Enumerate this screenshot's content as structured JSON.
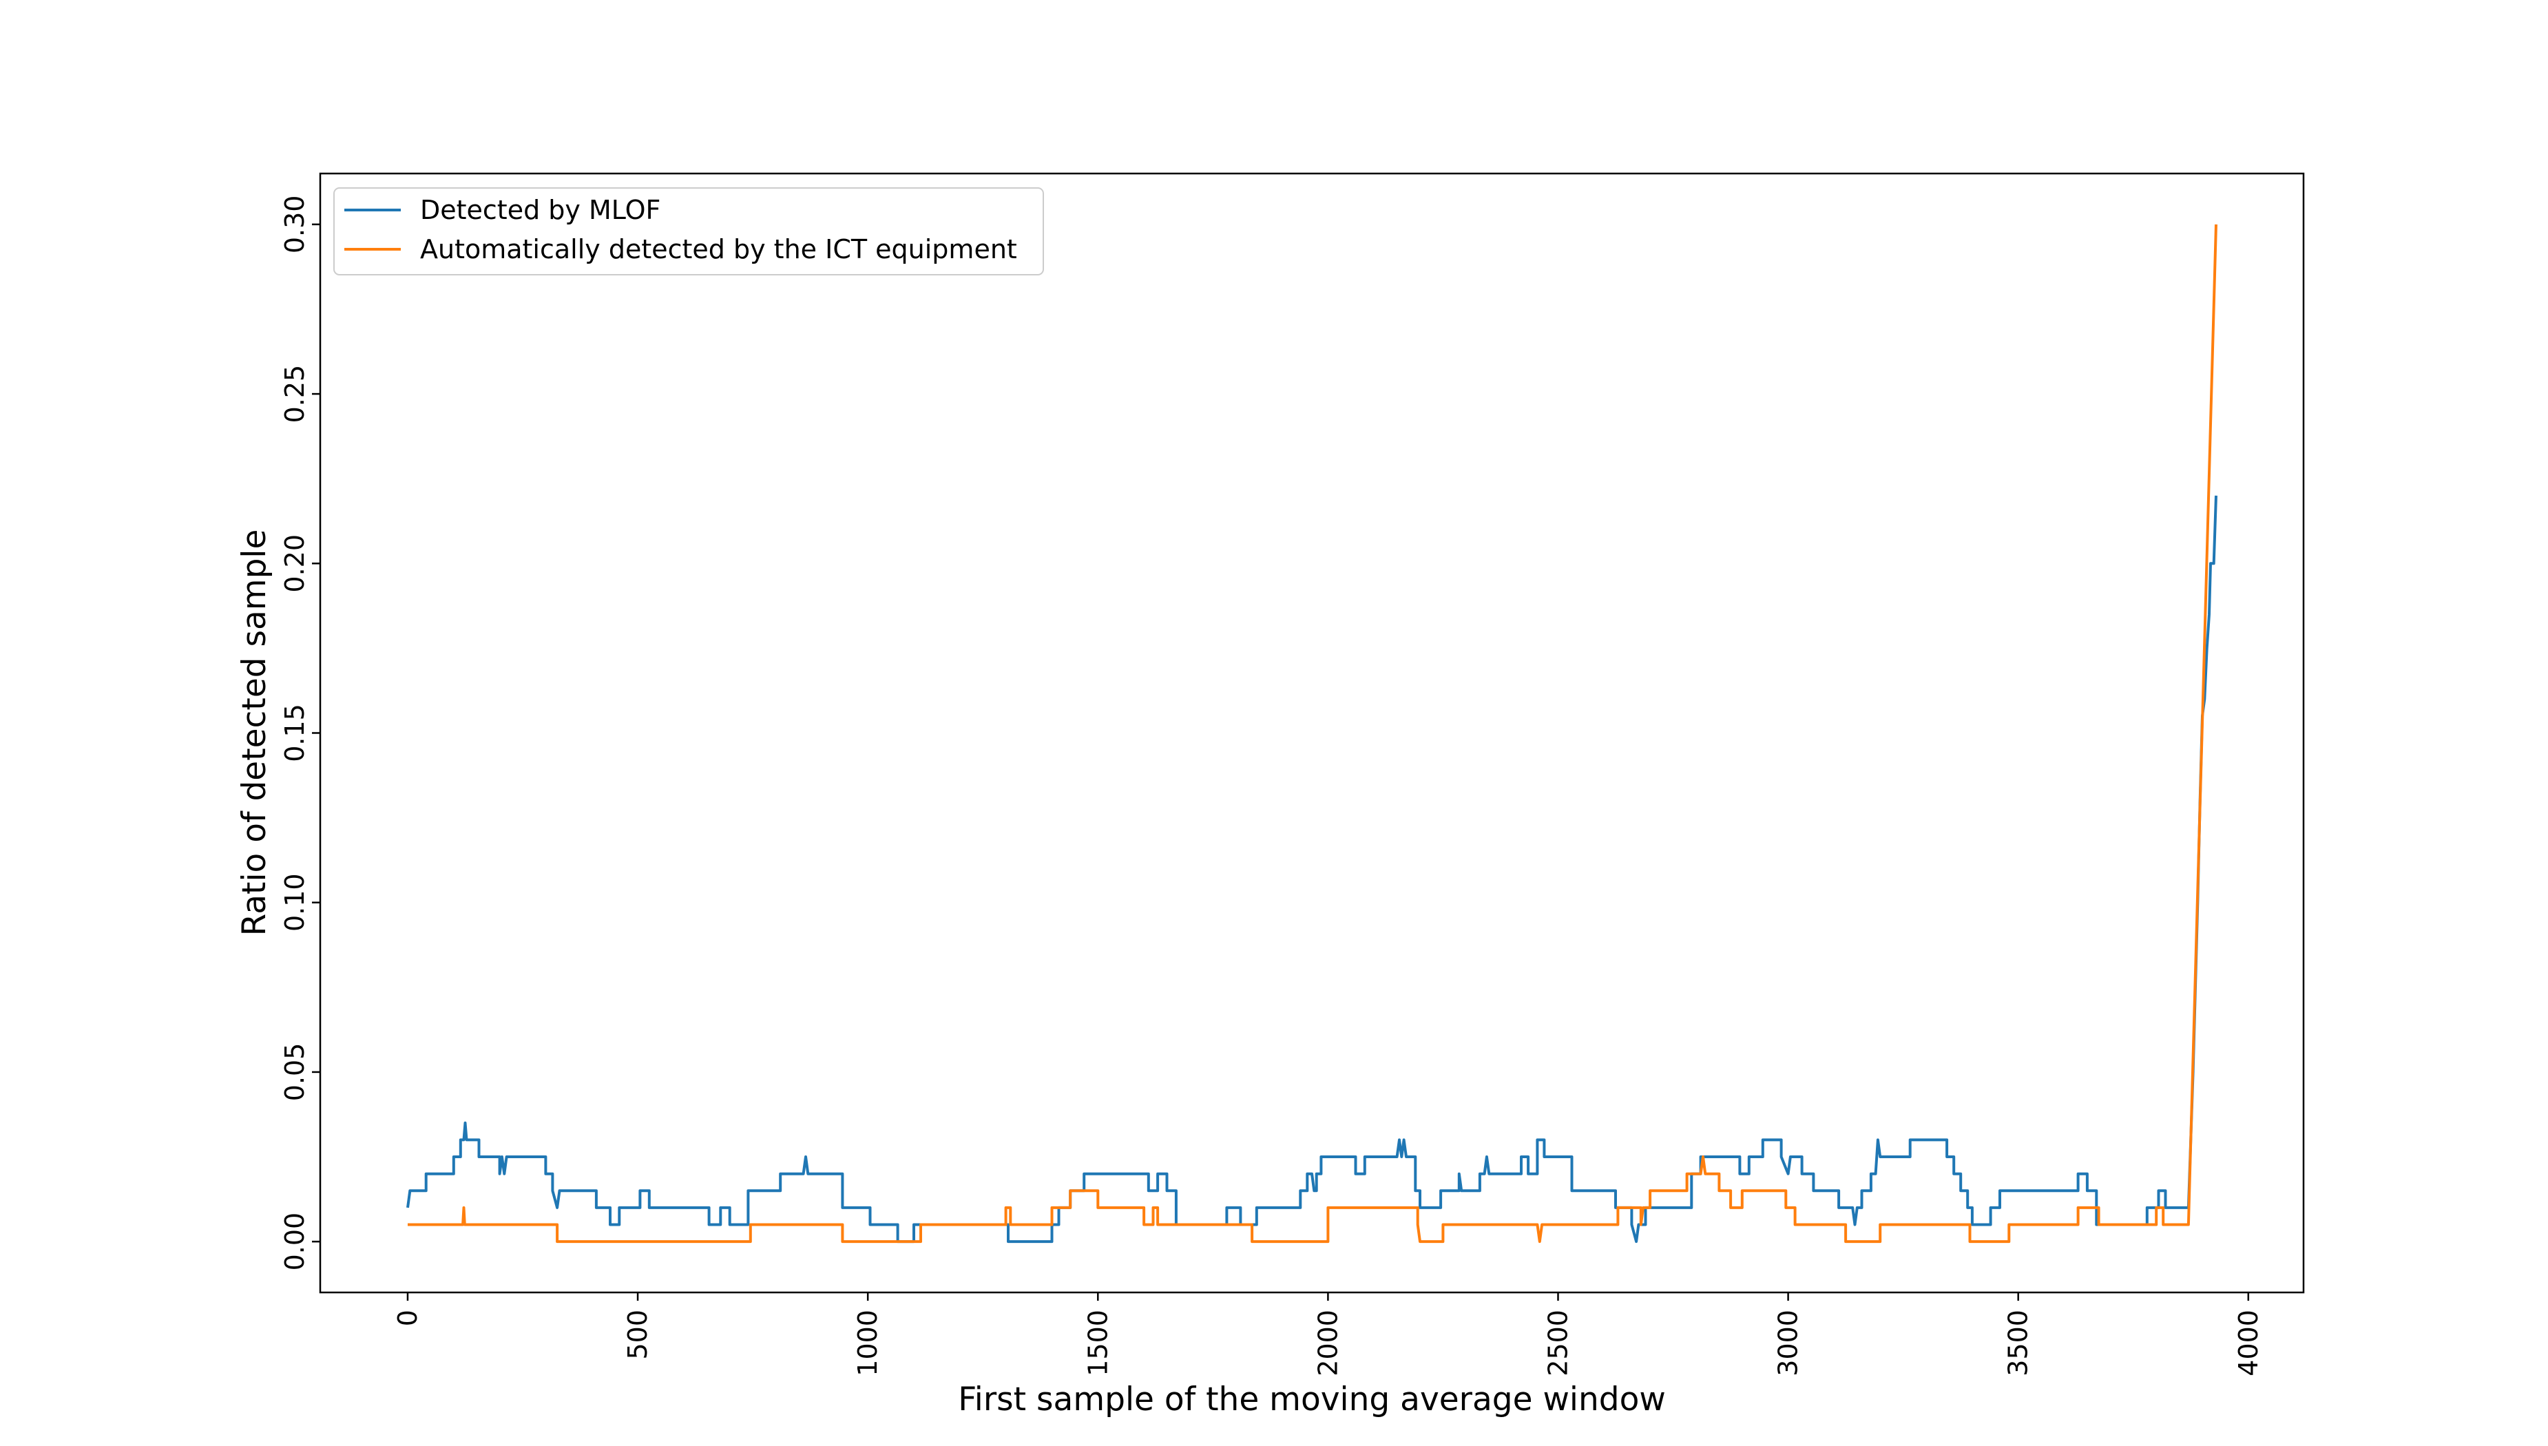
{
  "chart_data": {
    "type": "line",
    "title": "",
    "xlabel": "First sample of the moving average window",
    "ylabel": "Ratio of detected sample",
    "xlim": [
      -190,
      4120
    ],
    "ylim": [
      -0.015,
      0.315
    ],
    "xticks": [
      0,
      500,
      1000,
      1500,
      2000,
      2500,
      3000,
      3500,
      4000
    ],
    "yticks": [
      0.0,
      0.05,
      0.1,
      0.15,
      0.2,
      0.25,
      0.3
    ],
    "xtick_labels": [
      "0",
      "500",
      "1000",
      "1500",
      "2000",
      "2500",
      "3000",
      "3500",
      "4000"
    ],
    "ytick_labels": [
      "0.00",
      "0.05",
      "0.10",
      "0.15",
      "0.20",
      "0.25",
      "0.30"
    ],
    "grid": false,
    "legend_position": "top-left",
    "series": [
      {
        "name": "Detected by MLOF",
        "color": "#1f77b4",
        "points": [
          [
            0,
            0.01
          ],
          [
            5,
            0.015
          ],
          [
            40,
            0.015
          ],
          [
            40,
            0.02
          ],
          [
            100,
            0.02
          ],
          [
            100,
            0.025
          ],
          [
            115,
            0.025
          ],
          [
            115,
            0.03
          ],
          [
            122,
            0.03
          ],
          [
            125,
            0.035
          ],
          [
            128,
            0.03
          ],
          [
            155,
            0.03
          ],
          [
            155,
            0.025
          ],
          [
            200,
            0.025
          ],
          [
            200,
            0.02
          ],
          [
            205,
            0.025
          ],
          [
            210,
            0.02
          ],
          [
            215,
            0.025
          ],
          [
            300,
            0.025
          ],
          [
            300,
            0.02
          ],
          [
            315,
            0.02
          ],
          [
            315,
            0.015
          ],
          [
            325,
            0.01
          ],
          [
            330,
            0.015
          ],
          [
            410,
            0.015
          ],
          [
            410,
            0.01
          ],
          [
            440,
            0.01
          ],
          [
            440,
            0.005
          ],
          [
            460,
            0.005
          ],
          [
            460,
            0.01
          ],
          [
            505,
            0.01
          ],
          [
            505,
            0.015
          ],
          [
            525,
            0.015
          ],
          [
            525,
            0.01
          ],
          [
            655,
            0.01
          ],
          [
            655,
            0.005
          ],
          [
            680,
            0.005
          ],
          [
            680,
            0.01
          ],
          [
            700,
            0.01
          ],
          [
            700,
            0.005
          ],
          [
            740,
            0.005
          ],
          [
            740,
            0.015
          ],
          [
            810,
            0.015
          ],
          [
            810,
            0.02
          ],
          [
            860,
            0.02
          ],
          [
            865,
            0.025
          ],
          [
            870,
            0.02
          ],
          [
            945,
            0.02
          ],
          [
            945,
            0.01
          ],
          [
            1005,
            0.01
          ],
          [
            1005,
            0.005
          ],
          [
            1065,
            0.005
          ],
          [
            1065,
            0.0
          ],
          [
            1100,
            0.0
          ],
          [
            1100,
            0.005
          ],
          [
            1305,
            0.005
          ],
          [
            1305,
            0.0
          ],
          [
            1400,
            0.0
          ],
          [
            1400,
            0.005
          ],
          [
            1415,
            0.005
          ],
          [
            1415,
            0.01
          ],
          [
            1440,
            0.01
          ],
          [
            1440,
            0.015
          ],
          [
            1470,
            0.015
          ],
          [
            1470,
            0.02
          ],
          [
            1610,
            0.02
          ],
          [
            1610,
            0.015
          ],
          [
            1630,
            0.015
          ],
          [
            1630,
            0.02
          ],
          [
            1650,
            0.02
          ],
          [
            1650,
            0.015
          ],
          [
            1670,
            0.015
          ],
          [
            1670,
            0.005
          ],
          [
            1780,
            0.005
          ],
          [
            1780,
            0.01
          ],
          [
            1810,
            0.01
          ],
          [
            1810,
            0.005
          ],
          [
            1845,
            0.005
          ],
          [
            1845,
            0.01
          ],
          [
            1940,
            0.01
          ],
          [
            1940,
            0.015
          ],
          [
            1955,
            0.015
          ],
          [
            1955,
            0.02
          ],
          [
            1965,
            0.02
          ],
          [
            1970,
            0.015
          ],
          [
            1975,
            0.015
          ],
          [
            1975,
            0.02
          ],
          [
            1985,
            0.02
          ],
          [
            1985,
            0.025
          ],
          [
            2060,
            0.025
          ],
          [
            2060,
            0.02
          ],
          [
            2080,
            0.02
          ],
          [
            2080,
            0.025
          ],
          [
            2150,
            0.025
          ],
          [
            2155,
            0.03
          ],
          [
            2160,
            0.025
          ],
          [
            2165,
            0.03
          ],
          [
            2170,
            0.025
          ],
          [
            2190,
            0.025
          ],
          [
            2190,
            0.015
          ],
          [
            2200,
            0.015
          ],
          [
            2200,
            0.01
          ],
          [
            2245,
            0.01
          ],
          [
            2245,
            0.015
          ],
          [
            2285,
            0.015
          ],
          [
            2285,
            0.02
          ],
          [
            2290,
            0.015
          ],
          [
            2330,
            0.015
          ],
          [
            2330,
            0.02
          ],
          [
            2340,
            0.02
          ],
          [
            2345,
            0.025
          ],
          [
            2350,
            0.02
          ],
          [
            2420,
            0.02
          ],
          [
            2420,
            0.025
          ],
          [
            2435,
            0.025
          ],
          [
            2435,
            0.02
          ],
          [
            2455,
            0.02
          ],
          [
            2455,
            0.03
          ],
          [
            2470,
            0.03
          ],
          [
            2470,
            0.025
          ],
          [
            2530,
            0.025
          ],
          [
            2530,
            0.015
          ],
          [
            2625,
            0.015
          ],
          [
            2625,
            0.01
          ],
          [
            2660,
            0.01
          ],
          [
            2660,
            0.005
          ],
          [
            2670,
            0.0
          ],
          [
            2675,
            0.005
          ],
          [
            2690,
            0.005
          ],
          [
            2690,
            0.01
          ],
          [
            2790,
            0.01
          ],
          [
            2790,
            0.02
          ],
          [
            2810,
            0.02
          ],
          [
            2810,
            0.025
          ],
          [
            2895,
            0.025
          ],
          [
            2895,
            0.02
          ],
          [
            2915,
            0.02
          ],
          [
            2915,
            0.025
          ],
          [
            2945,
            0.025
          ],
          [
            2945,
            0.03
          ],
          [
            2985,
            0.03
          ],
          [
            2985,
            0.025
          ],
          [
            3000,
            0.02
          ],
          [
            3005,
            0.025
          ],
          [
            3030,
            0.025
          ],
          [
            3030,
            0.02
          ],
          [
            3055,
            0.02
          ],
          [
            3055,
            0.015
          ],
          [
            3110,
            0.015
          ],
          [
            3110,
            0.01
          ],
          [
            3140,
            0.01
          ],
          [
            3145,
            0.005
          ],
          [
            3150,
            0.01
          ],
          [
            3160,
            0.01
          ],
          [
            3160,
            0.015
          ],
          [
            3180,
            0.015
          ],
          [
            3180,
            0.02
          ],
          [
            3190,
            0.02
          ],
          [
            3195,
            0.03
          ],
          [
            3200,
            0.025
          ],
          [
            3265,
            0.025
          ],
          [
            3265,
            0.03
          ],
          [
            3345,
            0.03
          ],
          [
            3345,
            0.025
          ],
          [
            3360,
            0.025
          ],
          [
            3360,
            0.02
          ],
          [
            3375,
            0.02
          ],
          [
            3375,
            0.015
          ],
          [
            3390,
            0.015
          ],
          [
            3390,
            0.01
          ],
          [
            3400,
            0.01
          ],
          [
            3400,
            0.005
          ],
          [
            3440,
            0.005
          ],
          [
            3440,
            0.01
          ],
          [
            3460,
            0.01
          ],
          [
            3460,
            0.015
          ],
          [
            3630,
            0.015
          ],
          [
            3630,
            0.02
          ],
          [
            3650,
            0.02
          ],
          [
            3650,
            0.015
          ],
          [
            3670,
            0.015
          ],
          [
            3670,
            0.005
          ],
          [
            3780,
            0.005
          ],
          [
            3780,
            0.01
          ],
          [
            3805,
            0.01
          ],
          [
            3805,
            0.015
          ],
          [
            3820,
            0.015
          ],
          [
            3820,
            0.01
          ],
          [
            3870,
            0.01
          ],
          [
            3880,
            0.05
          ],
          [
            3890,
            0.1
          ],
          [
            3895,
            0.13
          ],
          [
            3900,
            0.155
          ],
          [
            3905,
            0.16
          ],
          [
            3910,
            0.175
          ],
          [
            3915,
            0.185
          ],
          [
            3918,
            0.2
          ],
          [
            3925,
            0.2
          ],
          [
            3930,
            0.22
          ]
        ]
      },
      {
        "name": "Automatically detected by the ICT equipment",
        "color": "#ff7f0e",
        "points": [
          [
            0,
            0.005
          ],
          [
            120,
            0.005
          ],
          [
            122,
            0.01
          ],
          [
            124,
            0.005
          ],
          [
            325,
            0.005
          ],
          [
            325,
            0.0
          ],
          [
            745,
            0.0
          ],
          [
            745,
            0.005
          ],
          [
            945,
            0.005
          ],
          [
            945,
            0.0
          ],
          [
            1115,
            0.0
          ],
          [
            1115,
            0.005
          ],
          [
            1300,
            0.005
          ],
          [
            1300,
            0.01
          ],
          [
            1310,
            0.01
          ],
          [
            1310,
            0.005
          ],
          [
            1400,
            0.005
          ],
          [
            1400,
            0.01
          ],
          [
            1440,
            0.01
          ],
          [
            1440,
            0.015
          ],
          [
            1500,
            0.015
          ],
          [
            1500,
            0.01
          ],
          [
            1600,
            0.01
          ],
          [
            1600,
            0.005
          ],
          [
            1620,
            0.005
          ],
          [
            1620,
            0.01
          ],
          [
            1630,
            0.01
          ],
          [
            1630,
            0.005
          ],
          [
            1835,
            0.005
          ],
          [
            1835,
            0.0
          ],
          [
            2000,
            0.0
          ],
          [
            2000,
            0.01
          ],
          [
            2195,
            0.01
          ],
          [
            2195,
            0.005
          ],
          [
            2200,
            0.0
          ],
          [
            2250,
            0.0
          ],
          [
            2250,
            0.005
          ],
          [
            2455,
            0.005
          ],
          [
            2460,
            0.0
          ],
          [
            2465,
            0.005
          ],
          [
            2630,
            0.005
          ],
          [
            2630,
            0.01
          ],
          [
            2680,
            0.01
          ],
          [
            2680,
            0.005
          ],
          [
            2685,
            0.01
          ],
          [
            2700,
            0.01
          ],
          [
            2700,
            0.015
          ],
          [
            2780,
            0.015
          ],
          [
            2780,
            0.02
          ],
          [
            2810,
            0.02
          ],
          [
            2815,
            0.025
          ],
          [
            2820,
            0.02
          ],
          [
            2850,
            0.02
          ],
          [
            2850,
            0.015
          ],
          [
            2875,
            0.015
          ],
          [
            2875,
            0.01
          ],
          [
            2900,
            0.01
          ],
          [
            2900,
            0.015
          ],
          [
            2995,
            0.015
          ],
          [
            2995,
            0.01
          ],
          [
            3015,
            0.01
          ],
          [
            3015,
            0.005
          ],
          [
            3125,
            0.005
          ],
          [
            3125,
            0.0
          ],
          [
            3200,
            0.0
          ],
          [
            3200,
            0.005
          ],
          [
            3395,
            0.005
          ],
          [
            3395,
            0.0
          ],
          [
            3480,
            0.0
          ],
          [
            3480,
            0.005
          ],
          [
            3630,
            0.005
          ],
          [
            3630,
            0.01
          ],
          [
            3675,
            0.01
          ],
          [
            3675,
            0.005
          ],
          [
            3800,
            0.005
          ],
          [
            3800,
            0.01
          ],
          [
            3815,
            0.01
          ],
          [
            3815,
            0.005
          ],
          [
            3870,
            0.005
          ],
          [
            3930,
            0.3
          ]
        ]
      }
    ]
  }
}
